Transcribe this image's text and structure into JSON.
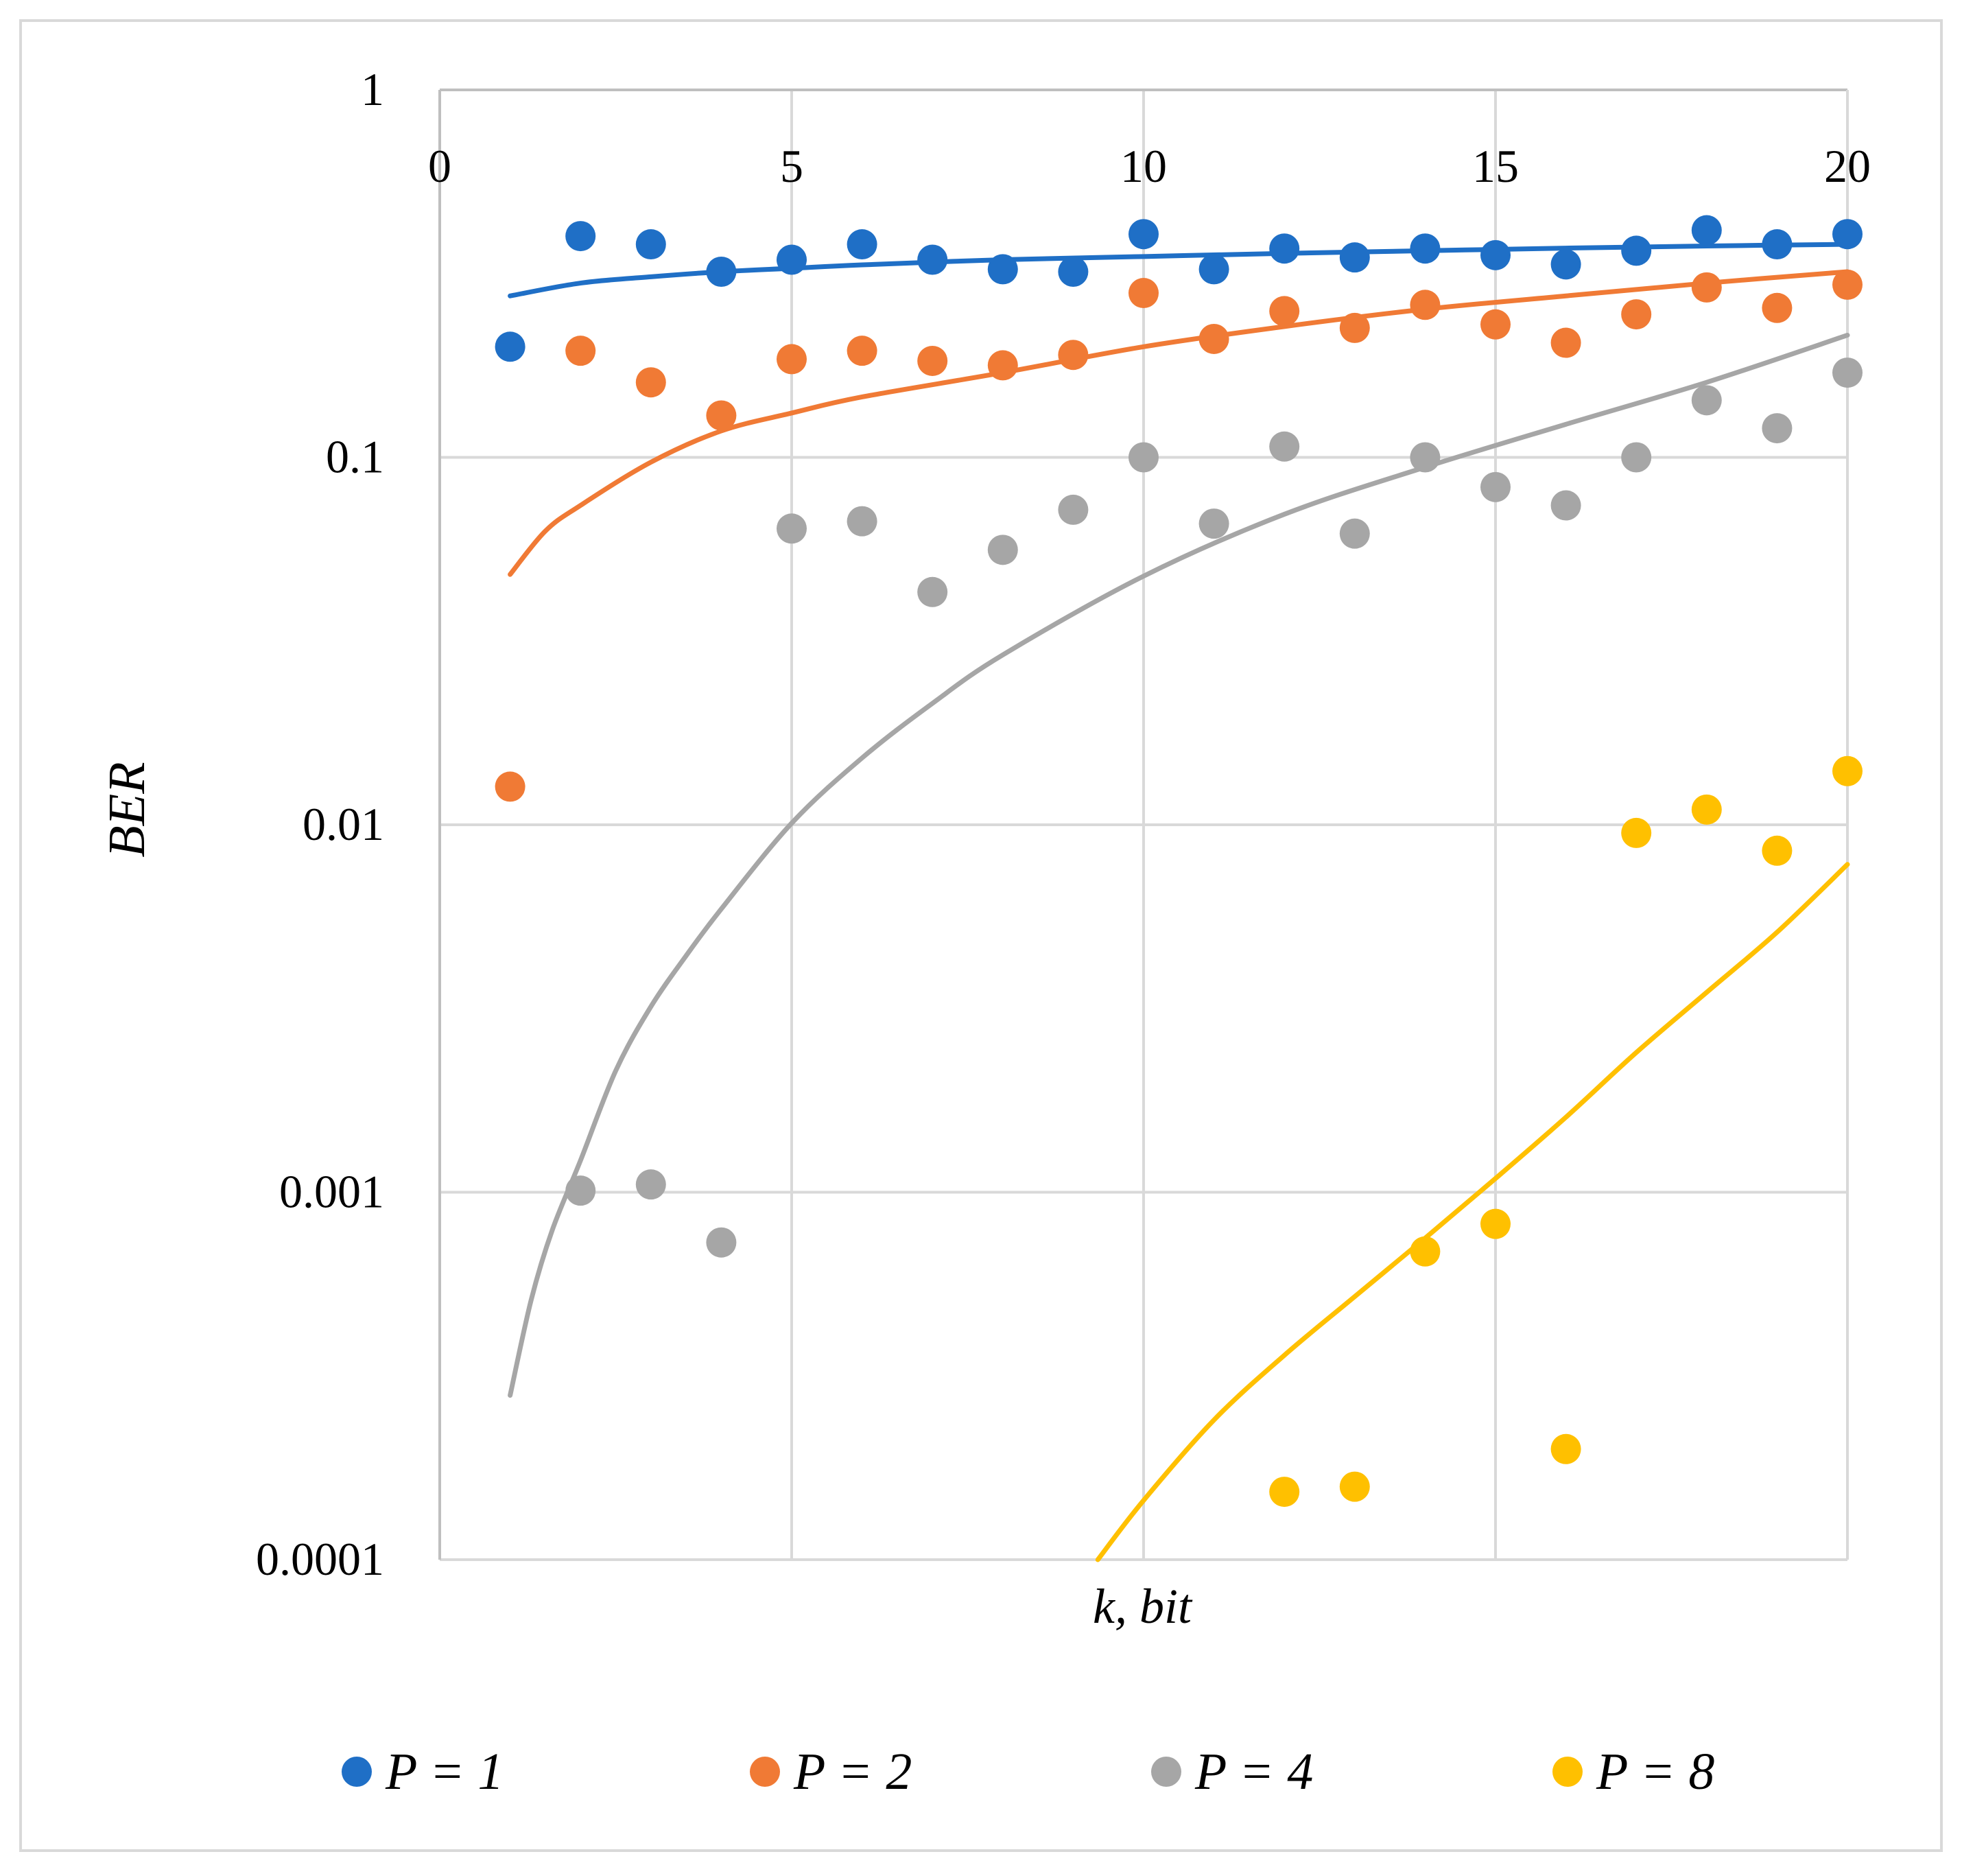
{
  "chart_data": {
    "type": "scatter",
    "title": "",
    "xlabel": "k, bit",
    "ylabel": "BER",
    "xlim": [
      0,
      20
    ],
    "ylim": [
      0.0001,
      1
    ],
    "yscale": "log",
    "grid": true,
    "legend_position": "bottom",
    "x_ticks": [
      "0",
      "5",
      "10",
      "15",
      "20"
    ],
    "y_ticks": [
      "1",
      "0.1",
      "0.01",
      "0.001",
      "0.0001"
    ],
    "series": [
      {
        "name": "P = 1",
        "color": "#1f6fc6",
        "points": [
          [
            1,
            0.2
          ],
          [
            2,
            0.4
          ],
          [
            3,
            0.38
          ],
          [
            4,
            0.32
          ],
          [
            5,
            0.345
          ],
          [
            6,
            0.38
          ],
          [
            7,
            0.345
          ],
          [
            8,
            0.325
          ],
          [
            9,
            0.32
          ],
          [
            10,
            0.405
          ],
          [
            11,
            0.325
          ],
          [
            12,
            0.37
          ],
          [
            13,
            0.35
          ],
          [
            14,
            0.37
          ],
          [
            15,
            0.355
          ],
          [
            16,
            0.335
          ],
          [
            17,
            0.365
          ],
          [
            18,
            0.415
          ],
          [
            19,
            0.38
          ],
          [
            20,
            0.405
          ]
        ],
        "trend": [
          [
            1,
            0.275
          ],
          [
            2,
            0.298
          ],
          [
            3,
            0.31
          ],
          [
            4,
            0.32
          ],
          [
            5,
            0.327
          ],
          [
            6,
            0.334
          ],
          [
            8,
            0.345
          ],
          [
            10,
            0.352
          ],
          [
            12,
            0.359
          ],
          [
            14,
            0.365
          ],
          [
            16,
            0.371
          ],
          [
            18,
            0.376
          ],
          [
            20,
            0.38
          ]
        ]
      },
      {
        "name": "P = 2",
        "color": "#f07a35",
        "points": [
          [
            1,
            0.0127
          ],
          [
            2,
            0.195
          ],
          [
            3,
            0.16
          ],
          [
            4,
            0.13
          ],
          [
            5,
            0.185
          ],
          [
            6,
            0.195
          ],
          [
            7,
            0.183
          ],
          [
            8,
            0.178
          ],
          [
            9,
            0.19
          ],
          [
            10,
            0.28
          ],
          [
            11,
            0.21
          ],
          [
            12,
            0.25
          ],
          [
            13,
            0.225
          ],
          [
            14,
            0.26
          ],
          [
            15,
            0.23
          ],
          [
            16,
            0.205
          ],
          [
            17,
            0.245
          ],
          [
            18,
            0.29
          ],
          [
            19,
            0.255
          ],
          [
            20,
            0.295
          ]
        ],
        "trend": [
          [
            1,
            0.048
          ],
          [
            1.5,
            0.063
          ],
          [
            2,
            0.074
          ],
          [
            3,
            0.097
          ],
          [
            4,
            0.118
          ],
          [
            5,
            0.132
          ],
          [
            6,
            0.146
          ],
          [
            8,
            0.17
          ],
          [
            10,
            0.2
          ],
          [
            12,
            0.227
          ],
          [
            14,
            0.253
          ],
          [
            16,
            0.275
          ],
          [
            18,
            0.298
          ],
          [
            20,
            0.32
          ]
        ]
      },
      {
        "name": "P = 4",
        "color": "#a6a6a6",
        "points": [
          [
            2,
            0.00101
          ],
          [
            3,
            0.00105
          ],
          [
            4,
            0.00073
          ],
          [
            5,
            0.064
          ],
          [
            6,
            0.067
          ],
          [
            7,
            0.043
          ],
          [
            8,
            0.056
          ],
          [
            9,
            0.072
          ],
          [
            10,
            0.1
          ],
          [
            11,
            0.066
          ],
          [
            12,
            0.107
          ],
          [
            13,
            0.062
          ],
          [
            14,
            0.1
          ],
          [
            15,
            0.083
          ],
          [
            16,
            0.074
          ],
          [
            17,
            0.1
          ],
          [
            18,
            0.143
          ],
          [
            19,
            0.12
          ],
          [
            20,
            0.17
          ]
        ],
        "trend": [
          [
            1,
            0.00028
          ],
          [
            1.3,
            0.00051
          ],
          [
            1.6,
            0.00079
          ],
          [
            2,
            0.00122
          ],
          [
            2.5,
            0.00214
          ],
          [
            3,
            0.0032
          ],
          [
            3.5,
            0.0044
          ],
          [
            4,
            0.0059
          ],
          [
            5,
            0.0101
          ],
          [
            6,
            0.0152
          ],
          [
            7,
            0.0214
          ],
          [
            8,
            0.029
          ],
          [
            10,
            0.0475
          ],
          [
            12,
            0.07
          ],
          [
            14,
            0.094
          ],
          [
            16,
            0.123
          ],
          [
            18,
            0.16
          ],
          [
            20,
            0.215
          ]
        ]
      },
      {
        "name": "P = 8",
        "color": "#ffc000",
        "points": [
          [
            12,
            0.000153
          ],
          [
            13,
            0.000158
          ],
          [
            14,
            0.00069
          ],
          [
            15,
            0.00082
          ],
          [
            16,
            0.0002
          ],
          [
            17,
            0.0095
          ],
          [
            18,
            0.011
          ],
          [
            19,
            0.0085
          ],
          [
            20,
            0.014
          ]
        ],
        "trend": [
          [
            9.35,
            0.0001
          ],
          [
            10,
            0.000145
          ],
          [
            11,
            0.00024
          ],
          [
            12,
            0.00036
          ],
          [
            13,
            0.00052
          ],
          [
            14,
            0.00075
          ],
          [
            15,
            0.00109
          ],
          [
            16,
            0.0016
          ],
          [
            17,
            0.0024
          ],
          [
            18,
            0.0035
          ],
          [
            19,
            0.0051
          ],
          [
            20,
            0.0078
          ]
        ]
      }
    ]
  }
}
